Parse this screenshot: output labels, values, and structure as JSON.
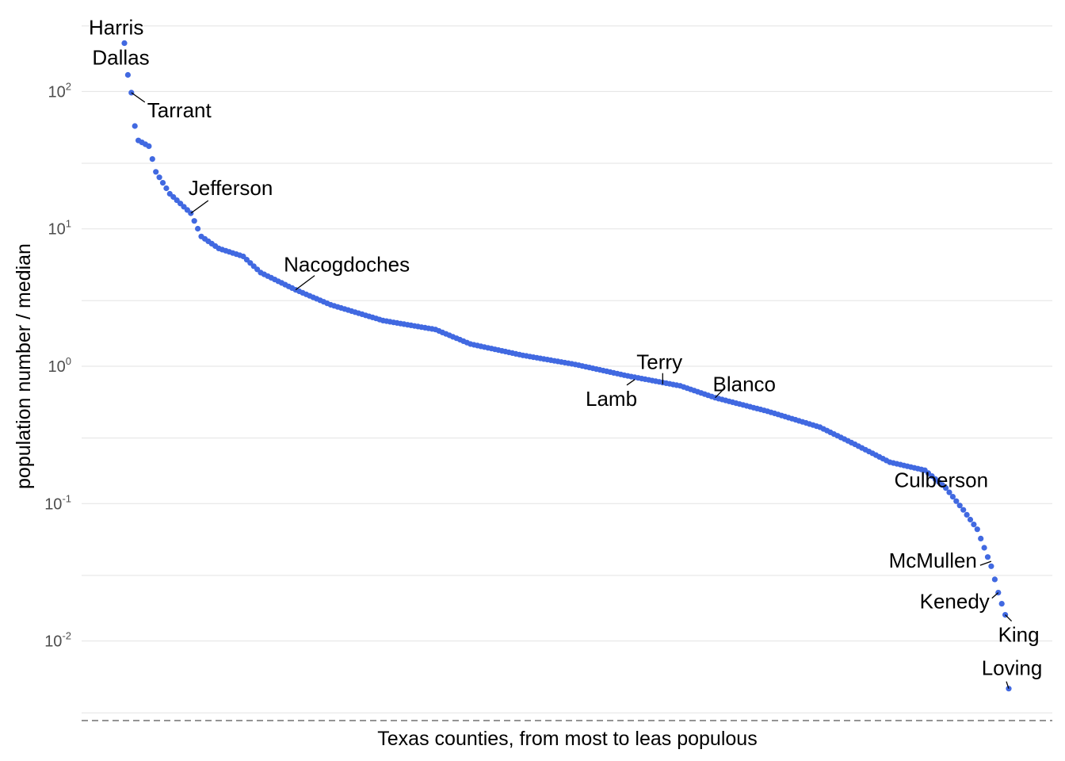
{
  "chart_data": {
    "type": "scatter",
    "title": "",
    "xlabel": "Texas counties, from most to leas populous",
    "ylabel": "population number / median",
    "y_scale": "log10",
    "ylim": [
      0.0028,
      310
    ],
    "y_ticks": [
      {
        "base": "10",
        "exp": "2",
        "value": 100
      },
      {
        "base": "10",
        "exp": "1",
        "value": 10
      },
      {
        "base": "10",
        "exp": "0",
        "value": 1
      },
      {
        "base": "10",
        "exp": "-1",
        "value": 0.1
      },
      {
        "base": "10",
        "exp": "-2",
        "value": 0.01
      }
    ],
    "grid": true,
    "point_color": "#4169E1",
    "n_points": 254,
    "profile": [
      {
        "rank": 1,
        "value": 225
      },
      {
        "rank": 2,
        "value": 132
      },
      {
        "rank": 3,
        "value": 98
      },
      {
        "rank": 4,
        "value": 56
      },
      {
        "rank": 5,
        "value": 44
      },
      {
        "rank": 8,
        "value": 40
      },
      {
        "rank": 10,
        "value": 26
      },
      {
        "rank": 14,
        "value": 18
      },
      {
        "rank": 20,
        "value": 13
      },
      {
        "rank": 23,
        "value": 8.8
      },
      {
        "rank": 28,
        "value": 7.2
      },
      {
        "rank": 35,
        "value": 6.3
      },
      {
        "rank": 40,
        "value": 4.8
      },
      {
        "rank": 50,
        "value": 3.6
      },
      {
        "rank": 60,
        "value": 2.8
      },
      {
        "rank": 75,
        "value": 2.15
      },
      {
        "rank": 90,
        "value": 1.85
      },
      {
        "rank": 100,
        "value": 1.45
      },
      {
        "rank": 115,
        "value": 1.2
      },
      {
        "rank": 130,
        "value": 1.03
      },
      {
        "rank": 145,
        "value": 0.85
      },
      {
        "rank": 160,
        "value": 0.72
      },
      {
        "rank": 170,
        "value": 0.59
      },
      {
        "rank": 185,
        "value": 0.47
      },
      {
        "rank": 200,
        "value": 0.36
      },
      {
        "rank": 210,
        "value": 0.27
      },
      {
        "rank": 220,
        "value": 0.2
      },
      {
        "rank": 230,
        "value": 0.175
      },
      {
        "rank": 236,
        "value": 0.13
      },
      {
        "rank": 241,
        "value": 0.09
      },
      {
        "rank": 245,
        "value": 0.065
      },
      {
        "rank": 249,
        "value": 0.035
      },
      {
        "rank": 251,
        "value": 0.0225
      },
      {
        "rank": 253,
        "value": 0.0155
      },
      {
        "rank": 254,
        "value": 0.0045
      }
    ],
    "labels": [
      {
        "name": "Harris",
        "rank": 1,
        "value": 225
      },
      {
        "name": "Dallas",
        "rank": 2,
        "value": 132
      },
      {
        "name": "Tarrant",
        "rank": 3,
        "value": 98
      },
      {
        "name": "Jefferson",
        "rank": 20,
        "value": 13
      },
      {
        "name": "Nacogdoches",
        "rank": 50,
        "value": 3.6
      },
      {
        "name": "Lamb",
        "rank": 147,
        "value": 0.8
      },
      {
        "name": "Terry",
        "rank": 155,
        "value": 0.74
      },
      {
        "name": "Blanco",
        "rank": 170,
        "value": 0.59
      },
      {
        "name": "Culberson",
        "rank": 234,
        "value": 0.155
      },
      {
        "name": "McMullen",
        "rank": 249,
        "value": 0.038
      },
      {
        "name": "Kenedy",
        "rank": 251,
        "value": 0.0225
      },
      {
        "name": "King",
        "rank": 253,
        "value": 0.0155
      },
      {
        "name": "Loving",
        "rank": 254,
        "value": 0.0045
      }
    ]
  }
}
